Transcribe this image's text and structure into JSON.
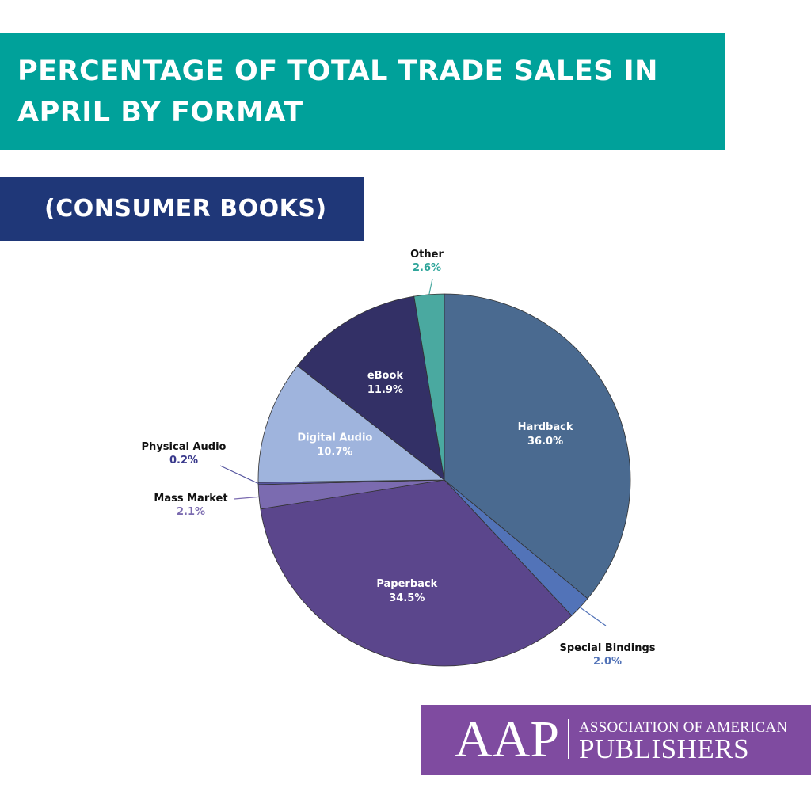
{
  "header": {
    "title": "PERCENTAGE OF TOTAL TRADE SALES IN APRIL BY FORMAT",
    "subtitle": "(CONSUMER BOOKS)"
  },
  "chart_data": {
    "type": "pie",
    "start_angle_deg": 0,
    "direction": "clockwise",
    "slices": [
      {
        "label": "Hardback",
        "value": 36.0,
        "display": "36.0%",
        "color": "#4a6a90",
        "text_color": "#ffffff"
      },
      {
        "label": "Special Bindings",
        "value": 2.0,
        "display": "2.0%",
        "color": "#5273b8",
        "text_color": "#5273b8"
      },
      {
        "label": "Paperback",
        "value": 34.5,
        "display": "34.5%",
        "color": "#5b468c",
        "text_color": "#ffffff"
      },
      {
        "label": "Mass Market",
        "value": 2.1,
        "display": "2.1%",
        "color": "#7b6bb0",
        "text_color": "#7b6bb0"
      },
      {
        "label": "Physical Audio",
        "value": 0.2,
        "display": "0.2%",
        "color": "#5757a0",
        "text_color": "#3a3a8c"
      },
      {
        "label": "Digital Audio",
        "value": 10.7,
        "display": "10.7%",
        "color": "#9fb4dd",
        "text_color": "#ffffff"
      },
      {
        "label": "eBook",
        "value": 11.9,
        "display": "11.9%",
        "color": "#333066",
        "text_color": "#ffffff"
      },
      {
        "label": "Other",
        "value": 2.6,
        "display": "2.6%",
        "color": "#4aa9a0",
        "text_color": "#2ea59a"
      }
    ]
  },
  "logo": {
    "acronym": "AAP",
    "line1": "ASSOCIATION OF AMERICAN",
    "line2": "PUBLISHERS"
  }
}
